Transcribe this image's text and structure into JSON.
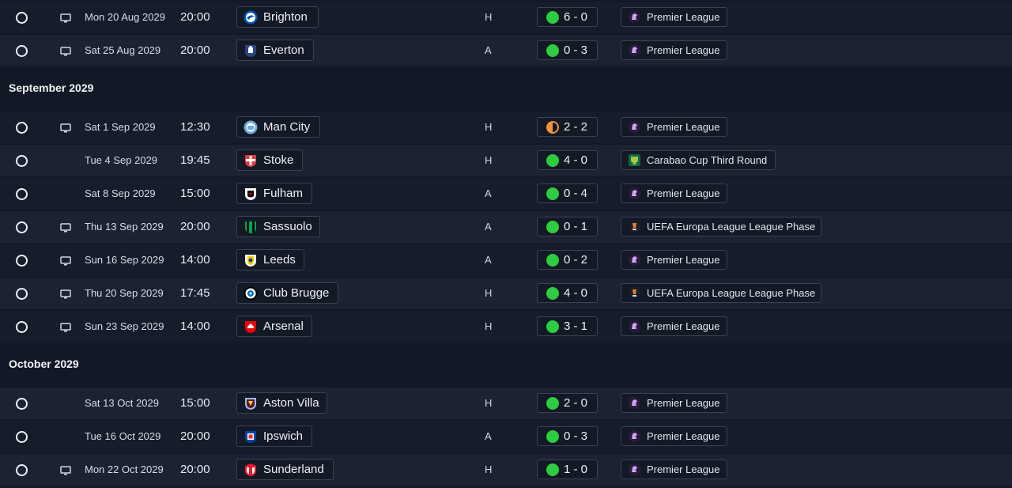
{
  "colors": {
    "win": "#2ecc40",
    "draw": "#f0933a",
    "rowOdd": "#171c2a",
    "rowEven": "#1c2232",
    "pillBorder": "#3a4153"
  },
  "sections": [
    {
      "title": "",
      "fixtures": [
        {
          "date": "Mon 20 Aug 2029",
          "time": "20:00",
          "tv": true,
          "opponent": "Brighton",
          "crest": "brighton-crest",
          "venue": "H",
          "result": "win",
          "score": "6 - 0",
          "competition": "Premier League",
          "comp_icon": "premier-league-icon"
        },
        {
          "date": "Sat 25 Aug 2029",
          "time": "20:00",
          "tv": true,
          "opponent": "Everton",
          "crest": "everton-crest",
          "venue": "A",
          "result": "win",
          "score": "0 - 3",
          "competition": "Premier League",
          "comp_icon": "premier-league-icon"
        }
      ]
    },
    {
      "title": "September 2029",
      "fixtures": [
        {
          "date": "Sat 1 Sep 2029",
          "time": "12:30",
          "tv": true,
          "opponent": "Man City",
          "crest": "man-city-crest",
          "venue": "H",
          "result": "draw",
          "score": "2 - 2",
          "competition": "Premier League",
          "comp_icon": "premier-league-icon"
        },
        {
          "date": "Tue 4 Sep 2029",
          "time": "19:45",
          "tv": false,
          "opponent": "Stoke",
          "crest": "stoke-crest",
          "venue": "H",
          "result": "win",
          "score": "4 - 0",
          "competition": "Carabao Cup Third Round",
          "comp_icon": "carabao-cup-icon"
        },
        {
          "date": "Sat 8 Sep 2029",
          "time": "15:00",
          "tv": false,
          "opponent": "Fulham",
          "crest": "fulham-crest",
          "venue": "A",
          "result": "win",
          "score": "0 - 4",
          "competition": "Premier League",
          "comp_icon": "premier-league-icon"
        },
        {
          "date": "Thu 13 Sep 2029",
          "time": "20:00",
          "tv": true,
          "opponent": "Sassuolo",
          "crest": "sassuolo-crest",
          "venue": "A",
          "result": "win",
          "score": "0 - 1",
          "competition": "UEFA Europa League League Phase",
          "comp_icon": "europa-league-icon"
        },
        {
          "date": "Sun 16 Sep 2029",
          "time": "14:00",
          "tv": true,
          "opponent": "Leeds",
          "crest": "leeds-crest",
          "venue": "A",
          "result": "win",
          "score": "0 - 2",
          "competition": "Premier League",
          "comp_icon": "premier-league-icon"
        },
        {
          "date": "Thu 20 Sep 2029",
          "time": "17:45",
          "tv": true,
          "opponent": "Club Brugge",
          "crest": "club-brugge-crest",
          "venue": "H",
          "result": "win",
          "score": "4 - 0",
          "competition": "UEFA Europa League League Phase",
          "comp_icon": "europa-league-icon"
        },
        {
          "date": "Sun 23 Sep 2029",
          "time": "14:00",
          "tv": true,
          "opponent": "Arsenal",
          "crest": "arsenal-crest",
          "venue": "H",
          "result": "win",
          "score": "3 - 1",
          "competition": "Premier League",
          "comp_icon": "premier-league-icon"
        }
      ]
    },
    {
      "title": "October 2029",
      "fixtures": [
        {
          "date": "Sat 13 Oct 2029",
          "time": "15:00",
          "tv": false,
          "opponent": "Aston Villa",
          "crest": "aston-villa-crest",
          "venue": "H",
          "result": "win",
          "score": "2 - 0",
          "competition": "Premier League",
          "comp_icon": "premier-league-icon"
        },
        {
          "date": "Tue 16 Oct 2029",
          "time": "20:00",
          "tv": false,
          "opponent": "Ipswich",
          "crest": "ipswich-crest",
          "venue": "A",
          "result": "win",
          "score": "0 - 3",
          "competition": "Premier League",
          "comp_icon": "premier-league-icon"
        },
        {
          "date": "Mon 22 Oct 2029",
          "time": "20:00",
          "tv": true,
          "opponent": "Sunderland",
          "crest": "sunderland-crest",
          "venue": "H",
          "result": "win",
          "score": "1 - 0",
          "competition": "Premier League",
          "comp_icon": "premier-league-icon"
        }
      ]
    }
  ]
}
